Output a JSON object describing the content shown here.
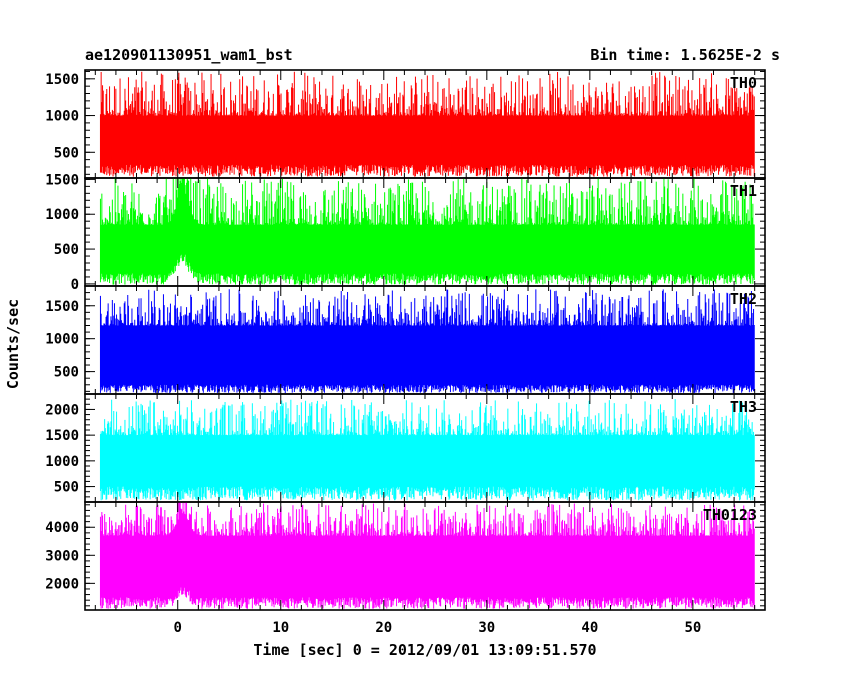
{
  "header": {
    "title": "ae120901130951_wam1_bst",
    "bin_time": "Bin time: 1.5625E-2 s"
  },
  "chart_data": {
    "type": "line",
    "xlabel": "Time [sec] 0 = 2012/09/01 13:09:51.570",
    "ylabel": "Counts/sec",
    "xlim": [
      -9,
      57
    ],
    "x_ticks": [
      0,
      10,
      20,
      30,
      40,
      50
    ],
    "x_tick_labels": [
      "0",
      "10",
      "20",
      "30",
      "40",
      "50"
    ],
    "data_x_range": [
      -7.5,
      56
    ],
    "panels": [
      {
        "name": "TH0",
        "color": "#ff0000",
        "ylim": [
          150,
          1620
        ],
        "y_ticks": [
          500,
          1000,
          1500
        ],
        "y_tick_labels": [
          "500",
          "1000",
          "1500"
        ],
        "baseline_low": 330,
        "baseline_high": 1000,
        "peak_max": 1600,
        "burst_time": 0.5,
        "burst_amp": 0
      },
      {
        "name": "TH1",
        "color": "#00ff00",
        "ylim": [
          -30,
          1520
        ],
        "y_ticks": [
          0,
          500,
          1000,
          1500
        ],
        "y_tick_labels": [
          "0",
          "500",
          "1000",
          "1500"
        ],
        "baseline_low": 150,
        "baseline_high": 850,
        "peak_max": 1520,
        "burst_time": 0.5,
        "burst_amp": 500
      },
      {
        "name": "TH2",
        "color": "#0000ff",
        "ylim": [
          160,
          1800
        ],
        "y_ticks": [
          500,
          1000,
          1500
        ],
        "y_tick_labels": [
          "500",
          "1000",
          "1500"
        ],
        "baseline_low": 300,
        "baseline_high": 1200,
        "peak_max": 1750,
        "burst_time": 0.5,
        "burst_amp": 0
      },
      {
        "name": "TH3",
        "color": "#00ffff",
        "ylim": [
          200,
          2300
        ],
        "y_ticks": [
          500,
          1000,
          1500,
          2000
        ],
        "y_tick_labels": [
          "500",
          "1000",
          "1500",
          "2000"
        ],
        "baseline_low": 500,
        "baseline_high": 1500,
        "peak_max": 2200,
        "burst_time": 0.5,
        "burst_amp": 0
      },
      {
        "name": "TH0123",
        "color": "#ff00ff",
        "ylim": [
          1050,
          4900
        ],
        "y_ticks": [
          2000,
          3000,
          4000
        ],
        "y_tick_labels": [
          "2000",
          "3000",
          "4000"
        ],
        "baseline_low": 1500,
        "baseline_high": 3700,
        "peak_max": 4850,
        "burst_time": 0.5,
        "burst_amp": 800
      }
    ]
  }
}
